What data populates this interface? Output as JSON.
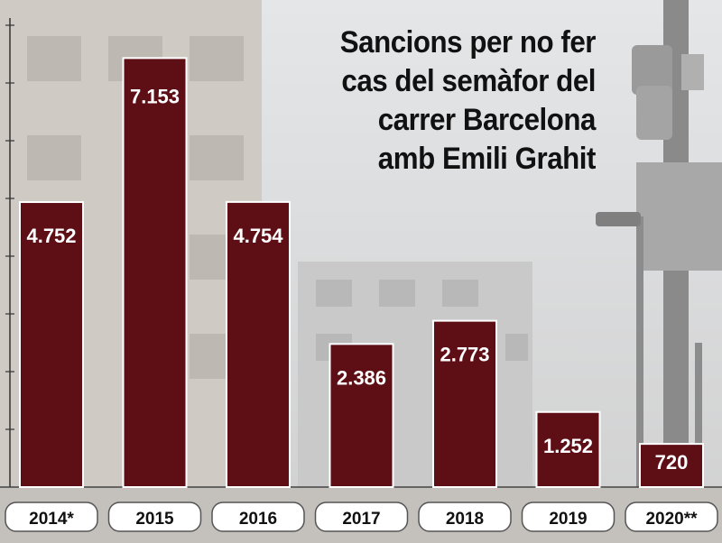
{
  "title_lines": [
    "Sancions per no fer",
    "cas del semàfor del",
    "carrer Barcelona",
    "amb Emili Grahit"
  ],
  "colors": {
    "bar": "#5e0f16",
    "bar_border": "#ffffff",
    "pill": "#ffffff"
  },
  "chart_data": {
    "type": "bar",
    "title": "Sancions per no fer cas del semàfor del carrer Barcelona amb Emili Grahit",
    "categories": [
      "2014*",
      "2015",
      "2016",
      "2017",
      "2018",
      "2019",
      "2020**"
    ],
    "values": [
      4752,
      7153,
      4754,
      2386,
      2773,
      1252,
      720
    ],
    "value_labels": [
      "4.752",
      "7.153",
      "4.754",
      "2.386",
      "2.773",
      "1.252",
      "720"
    ],
    "ylim": [
      0,
      7700
    ],
    "grid": false,
    "xlabel": "",
    "ylabel": ""
  }
}
